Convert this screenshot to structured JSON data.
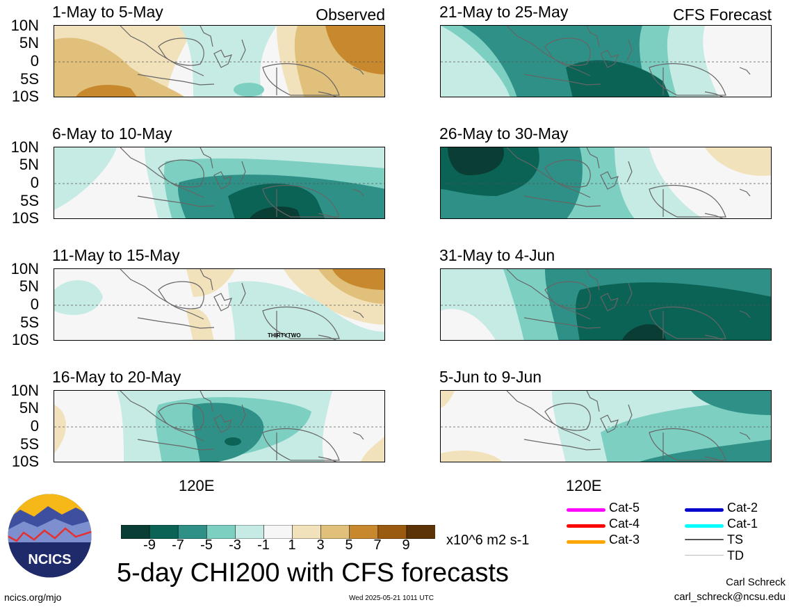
{
  "panels_left": [
    {
      "title": "1-May to 5-May",
      "tag": "Observed"
    },
    {
      "title": "6-May to 10-May",
      "tag": ""
    },
    {
      "title": "11-May to 15-May",
      "tag": ""
    },
    {
      "title": "16-May to 20-May",
      "tag": ""
    }
  ],
  "panels_right": [
    {
      "title": "21-May to 25-May",
      "tag": "CFS Forecast"
    },
    {
      "title": "26-May to 30-May",
      "tag": ""
    },
    {
      "title": "31-May to 4-Jun",
      "tag": ""
    },
    {
      "title": "5-Jun to 9-Jun",
      "tag": ""
    }
  ],
  "lat_labels": [
    "10N",
    "5N",
    "0",
    "5S",
    "10S"
  ],
  "x_label": "120E",
  "storm_label": "THIRTYTWO",
  "colorbar": {
    "labels": [
      "-9",
      "-7",
      "-5",
      "-3",
      "-1",
      "1",
      "3",
      "5",
      "7",
      "9"
    ],
    "colors": [
      "#0a3d33",
      "#0b6356",
      "#2e9086",
      "#7dcfc2",
      "#c6ebe4",
      "#f6f6f6",
      "#f2e2bb",
      "#e0c07a",
      "#c8892e",
      "#9a5b10",
      "#5b3306"
    ],
    "units": "x10^6 m2 s-1"
  },
  "title": "5-day CHI200 with CFS forecasts",
  "legend": [
    {
      "label": "Cat-5",
      "color": "#ff00ff"
    },
    {
      "label": "Cat-4",
      "color": "#ff0000"
    },
    {
      "label": "Cat-3",
      "color": "#ffa500"
    },
    {
      "label": "Cat-2",
      "color": "#0000cc"
    },
    {
      "label": "Cat-1",
      "color": "#00ffff"
    },
    {
      "label": "TS",
      "color": "#555555"
    },
    {
      "label": "TD",
      "color": "#bbbbbb"
    }
  ],
  "logo_text": "NCICS",
  "footer_url": "ncics.org/mjo",
  "timestamp": "Wed 2025-05-21 1011 UTC",
  "author_name": "Carl Schreck",
  "author_email": "carl_schreck@ncsu.edu"
}
